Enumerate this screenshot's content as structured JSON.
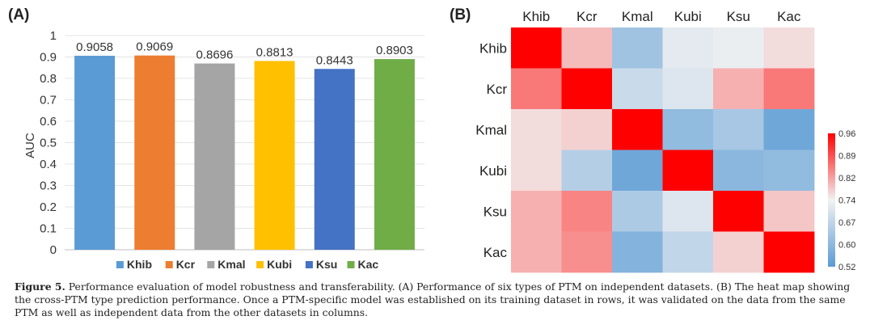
{
  "chart_data": [
    {
      "type": "bar",
      "panel_label": "(A)",
      "ylabel": "AUC",
      "categories": [
        "Khib",
        "Kcr",
        "Kmal",
        "Kubi",
        "Ksu",
        "Kac"
      ],
      "values": [
        0.9058,
        0.9069,
        0.8696,
        0.8813,
        0.8443,
        0.8903
      ],
      "value_labels": [
        "0.9058",
        "0.9069",
        "0.8696",
        "0.8813",
        "0.8443",
        "0.8903"
      ],
      "colors": [
        "#5B9BD5",
        "#ED7D31",
        "#A5A5A5",
        "#FFC000",
        "#4472C4",
        "#70AD47"
      ],
      "ylim": [
        0,
        1
      ],
      "yticks": [
        "0",
        "0.1",
        "0.2",
        "0.3",
        "0.4",
        "0.5",
        "0.6",
        "0.7",
        "0.8",
        "0.9",
        "1"
      ],
      "grid": true,
      "legend": "bottom"
    },
    {
      "type": "heatmap",
      "panel_label": "(B)",
      "row_labels": [
        "Khib",
        "Kcr",
        "Kmal",
        "Kubi",
        "Ksu",
        "Kac"
      ],
      "col_labels": [
        "Khib",
        "Kcr",
        "Kmal",
        "Kubi",
        "Ksu",
        "Kac"
      ],
      "values": [
        [
          0.96,
          0.79,
          0.62,
          0.72,
          0.73,
          0.76
        ],
        [
          0.85,
          0.96,
          0.68,
          0.71,
          0.8,
          0.85
        ],
        [
          0.76,
          0.77,
          0.96,
          0.6,
          0.63,
          0.55
        ],
        [
          0.76,
          0.65,
          0.55,
          0.96,
          0.59,
          0.6
        ],
        [
          0.8,
          0.84,
          0.64,
          0.71,
          0.96,
          0.78
        ],
        [
          0.8,
          0.83,
          0.58,
          0.67,
          0.77,
          0.96
        ]
      ],
      "colorbar": {
        "min": 0.52,
        "max": 0.96,
        "ticks": [
          "0.96",
          "0.89",
          "0.82",
          "0.74",
          "0.67",
          "0.60",
          "0.52"
        ],
        "low_color": "#5B9BD5",
        "mid_color": "#F2F2F2",
        "high_color": "#FF0000"
      }
    }
  ],
  "caption": {
    "label": "Figure 5.",
    "text": " Performance evaluation of model robustness and transferability. (A) Performance of six types of PTM on independent datasets. (B) The heat map showing the cross-PTM type prediction performance. Once a PTM-specific model was established on its training dataset in rows, it was validated on the data from the same PTM as well as independent data from the other datasets in columns."
  }
}
